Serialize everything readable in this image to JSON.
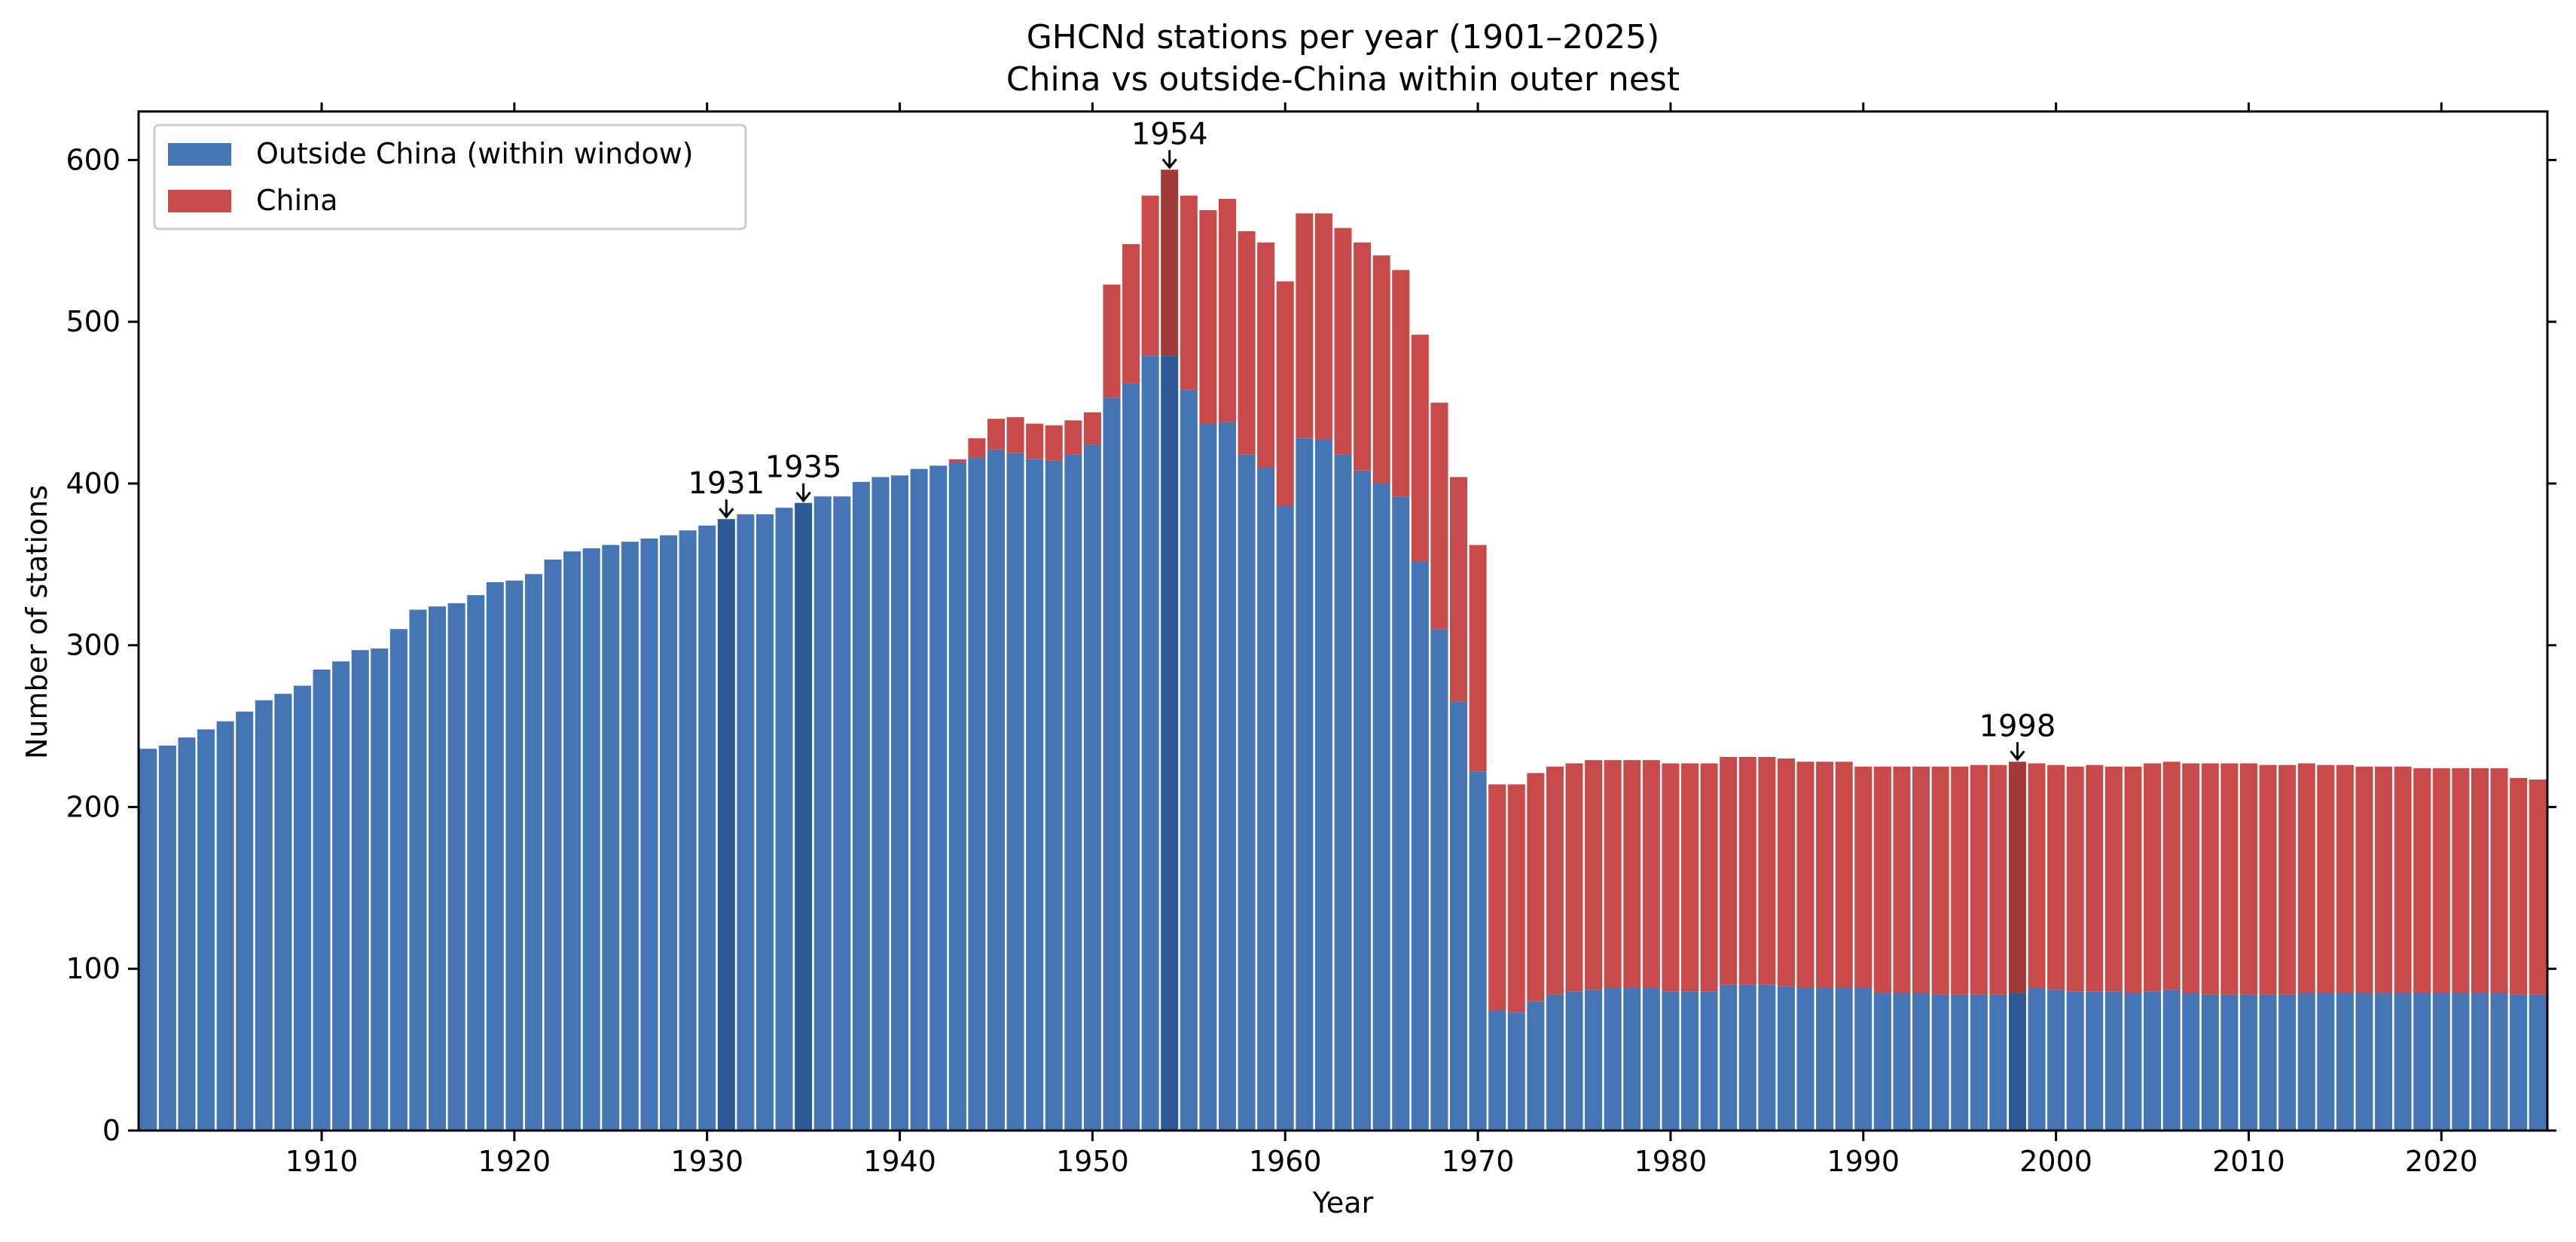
{
  "chart_data": {
    "type": "bar",
    "stacked": true,
    "title": "GHCNd stations per year (1901–2025)",
    "subtitle": "China vs outside-China within outer nest",
    "xlabel": "Year",
    "ylabel": "Number of stations",
    "xlim": [
      1900.5,
      2025.5
    ],
    "ylim": [
      0,
      630
    ],
    "x_ticks": [
      1910,
      1920,
      1930,
      1940,
      1950,
      1960,
      1970,
      1980,
      1990,
      2000,
      2010,
      2020
    ],
    "y_ticks": [
      0,
      100,
      200,
      300,
      400,
      500,
      600
    ],
    "legend_position": "top-left",
    "years": [
      1901,
      1902,
      1903,
      1904,
      1905,
      1906,
      1907,
      1908,
      1909,
      1910,
      1911,
      1912,
      1913,
      1914,
      1915,
      1916,
      1917,
      1918,
      1919,
      1920,
      1921,
      1922,
      1923,
      1924,
      1925,
      1926,
      1927,
      1928,
      1929,
      1930,
      1931,
      1932,
      1933,
      1934,
      1935,
      1936,
      1937,
      1938,
      1939,
      1940,
      1941,
      1942,
      1943,
      1944,
      1945,
      1946,
      1947,
      1948,
      1949,
      1950,
      1951,
      1952,
      1953,
      1954,
      1955,
      1956,
      1957,
      1958,
      1959,
      1960,
      1961,
      1962,
      1963,
      1964,
      1965,
      1966,
      1967,
      1968,
      1969,
      1970,
      1971,
      1972,
      1973,
      1974,
      1975,
      1976,
      1977,
      1978,
      1979,
      1980,
      1981,
      1982,
      1983,
      1984,
      1985,
      1986,
      1987,
      1988,
      1989,
      1990,
      1991,
      1992,
      1993,
      1994,
      1995,
      1996,
      1997,
      1998,
      1999,
      2000,
      2001,
      2002,
      2003,
      2004,
      2005,
      2006,
      2007,
      2008,
      2009,
      2010,
      2011,
      2012,
      2013,
      2014,
      2015,
      2016,
      2017,
      2018,
      2019,
      2020,
      2021,
      2022,
      2023,
      2024,
      2025
    ],
    "series": [
      {
        "name": "Outside China (within window)",
        "color": "#4575b4",
        "highlight_color": "#2d5a96",
        "values": [
          236,
          238,
          243,
          248,
          253,
          259,
          266,
          270,
          275,
          285,
          290,
          297,
          298,
          310,
          322,
          324,
          326,
          331,
          339,
          340,
          344,
          353,
          358,
          360,
          362,
          364,
          366,
          368,
          371,
          374,
          378,
          381,
          381,
          385,
          388,
          392,
          392,
          401,
          404,
          405,
          409,
          411,
          413,
          416,
          421,
          419,
          415,
          414,
          418,
          424,
          453,
          462,
          479,
          479,
          458,
          437,
          438,
          418,
          410,
          386,
          428,
          427,
          418,
          408,
          400,
          392,
          352,
          310,
          265,
          222,
          74,
          73,
          80,
          84,
          86,
          87,
          88,
          88,
          88,
          86,
          86,
          86,
          90,
          90,
          90,
          89,
          88,
          88,
          88,
          88,
          85,
          85,
          85,
          84,
          84,
          84,
          84,
          85,
          88,
          87,
          86,
          86,
          86,
          85,
          86,
          87,
          85,
          84,
          84,
          84,
          84,
          84,
          85,
          85,
          85,
          85,
          85,
          85,
          85,
          85,
          85,
          85,
          85,
          84,
          84
        ]
      },
      {
        "name": "China",
        "color": "#c84a4a",
        "highlight_color": "#a23a3a",
        "values": [
          0,
          0,
          0,
          0,
          0,
          0,
          0,
          0,
          0,
          0,
          0,
          0,
          0,
          0,
          0,
          0,
          0,
          0,
          0,
          0,
          0,
          0,
          0,
          0,
          0,
          0,
          0,
          0,
          0,
          0,
          0,
          0,
          0,
          0,
          0,
          0,
          0,
          0,
          0,
          0,
          0,
          0,
          2,
          12,
          19,
          22,
          22,
          22,
          21,
          20,
          70,
          86,
          99,
          115,
          120,
          132,
          138,
          138,
          139,
          139,
          139,
          140,
          140,
          141,
          141,
          140,
          140,
          140,
          139,
          140,
          140,
          141,
          141,
          141,
          141,
          142,
          141,
          141,
          141,
          141,
          141,
          141,
          141,
          141,
          141,
          141,
          140,
          140,
          140,
          137,
          140,
          140,
          140,
          141,
          141,
          142,
          142,
          143,
          139,
          139,
          139,
          140,
          139,
          140,
          141,
          141,
          142,
          143,
          143,
          143,
          142,
          142,
          142,
          141,
          141,
          140,
          140,
          140,
          139,
          139,
          139,
          139,
          139,
          134,
          133
        ]
      }
    ],
    "annotations": [
      {
        "year": 1931,
        "label": "1931"
      },
      {
        "year": 1935,
        "label": "1935"
      },
      {
        "year": 1954,
        "label": "1954"
      },
      {
        "year": 1998,
        "label": "1998"
      }
    ]
  }
}
